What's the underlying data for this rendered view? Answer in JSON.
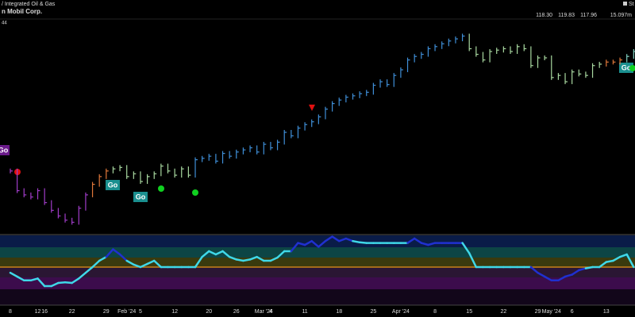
{
  "header": {
    "sector": "/ Integrated Oil & Gas",
    "name": "n Mobil Corp.",
    "corner": "44",
    "badge": "St",
    "quote": [
      "118.30",
      "119.83",
      "117.96",
      "15.097m"
    ]
  },
  "annotations": [
    "Go",
    "Go",
    "Go",
    "Go"
  ],
  "chart_data": [
    {
      "type": "ohlc",
      "categories": [
        "8",
        null,
        null,
        null,
        "12",
        "16",
        null,
        null,
        null,
        "22",
        null,
        null,
        null,
        null,
        "29",
        null,
        null,
        "Feb '24",
        null,
        "5",
        null,
        null,
        null,
        null,
        "12",
        null,
        null,
        null,
        null,
        "20",
        null,
        null,
        null,
        "26",
        null,
        null,
        null,
        "Mar '24",
        "4",
        null,
        null,
        null,
        null,
        "11",
        null,
        null,
        null,
        null,
        "18",
        null,
        null,
        null,
        null,
        "25",
        null,
        null,
        null,
        "Apr '24",
        null,
        null,
        null,
        null,
        "8",
        null,
        null,
        null,
        null,
        "15",
        null,
        null,
        null,
        null,
        "22",
        null,
        null,
        null,
        null,
        "29",
        null,
        "May '24",
        null,
        null,
        "6",
        null,
        null,
        null,
        null,
        "13",
        null,
        null,
        null,
        null
      ],
      "values": [
        103.6,
        100.8,
        100.2,
        99.9,
        100.8,
        99.1,
        98,
        97.2,
        96.6,
        96.3,
        98.3,
        100.2,
        101.7,
        102.8,
        103.6,
        103.9,
        104.1,
        102.8,
        103.2,
        102.1,
        102.8,
        103.2,
        104.3,
        103.6,
        103,
        103.9,
        103,
        105.2,
        105.4,
        105.7,
        105,
        106.1,
        105.7,
        106.3,
        106.6,
        106.9,
        106.3,
        107.4,
        106.9,
        107.7,
        109.1,
        108.6,
        109.7,
        110.2,
        110.6,
        111.3,
        112.4,
        113.2,
        113.7,
        114.1,
        114.3,
        114.6,
        114.8,
        115.8,
        116.3,
        115.9,
        117.2,
        118,
        119.4,
        119.9,
        120.2,
        121,
        121.3,
        121.7,
        122.1,
        122.4,
        122.8,
        121,
        120.2,
        119.4,
        120.6,
        120.8,
        121,
        120.6,
        121.3,
        121,
        118.6,
        119.7,
        119.7,
        116.9,
        117.2,
        116.3,
        117.7,
        117.4,
        117.2,
        118.6,
        118.8,
        119.1,
        119.1,
        119.4,
        119.9,
        120.6
      ],
      "colors": [
        "#a03cc8",
        "#a03cc8",
        "#a03cc8",
        "#a03cc8",
        "#a03cc8",
        "#a03cc8",
        "#a03cc8",
        "#a03cc8",
        "#a03cc8",
        "#a03cc8",
        "#a03cc8",
        "#a03cc8",
        "#e0783a",
        "#e0783a",
        "#e0783a",
        "#a8d8a0",
        "#a8d8a0",
        "#a8d8a0",
        "#a8d8a0",
        "#a8d8a0",
        "#a8d8a0",
        "#a8d8a0",
        "#a8d8a0",
        "#a8d8a0",
        "#a8d8a0",
        "#a8d8a0",
        "#a8d8a0",
        "#3f8fd8",
        "#3f8fd8",
        "#3f8fd8",
        "#3f8fd8",
        "#3f8fd8",
        "#3f8fd8",
        "#3f8fd8",
        "#3f8fd8",
        "#3f8fd8",
        "#3f8fd8",
        "#3f8fd8",
        "#3f8fd8",
        "#3f8fd8",
        "#3f8fd8",
        "#3f8fd8",
        "#3f8fd8",
        "#3f8fd8",
        "#3f8fd8",
        "#3f8fd8",
        "#3f8fd8",
        "#3f8fd8",
        "#3f8fd8",
        "#3f8fd8",
        "#3f8fd8",
        "#3f8fd8",
        "#3f8fd8",
        "#3f8fd8",
        "#3f8fd8",
        "#3f8fd8",
        "#3f8fd8",
        "#3f8fd8",
        "#3f8fd8",
        "#3f8fd8",
        "#3f8fd8",
        "#3f8fd8",
        "#3f8fd8",
        "#3f8fd8",
        "#3f8fd8",
        "#3f8fd8",
        "#3f8fd8",
        "#a8d8a0",
        "#a8d8a0",
        "#a8d8a0",
        "#a8d8a0",
        "#a8d8a0",
        "#a8d8a0",
        "#a8d8a0",
        "#a8d8a0",
        "#a8d8a0",
        "#a8d8a0",
        "#a8d8a0",
        "#a8d8a0",
        "#a8d8a0",
        "#a8d8a0",
        "#a8d8a0",
        "#a8d8a0",
        "#a8d8a0",
        "#a8d8a0",
        "#a8d8a0",
        "#a8d8a0",
        "#e0783a",
        "#e0783a",
        "#e0783a",
        "#7fd0c0",
        "#7fd0c0"
      ],
      "ylim": [
        95,
        125
      ]
    },
    {
      "type": "line",
      "values": [
        -0.9,
        -1.5,
        -2.1,
        -2.1,
        -1.8,
        -3,
        -3,
        -2.5,
        -2.4,
        -2.5,
        -1.8,
        -0.9,
        0,
        1,
        1.6,
        2.8,
        2,
        1,
        0.4,
        0,
        0.5,
        1,
        0,
        0,
        0,
        0,
        0,
        0,
        1.6,
        2.5,
        2,
        2.5,
        1.6,
        1.2,
        1,
        1.2,
        1.6,
        1,
        1,
        1.5,
        2.5,
        2.5,
        3.8,
        3.5,
        4.1,
        3.2,
        4.1,
        4.8,
        4.1,
        4.5,
        4.1,
        3.9,
        3.8,
        3.8,
        3.8,
        3.8,
        3.8,
        3.8,
        3.8,
        4.5,
        3.8,
        3.5,
        3.8,
        3.8,
        3.8,
        3.8,
        3.8,
        2.2,
        0,
        0,
        0,
        0,
        0,
        0,
        0,
        0,
        0,
        -0.9,
        -1.5,
        -2.1,
        -2.1,
        -1.5,
        -1.2,
        -0.5,
        -0.2,
        0,
        0,
        0.8,
        1,
        1.6,
        2,
        0
      ],
      "colors": [
        "#3fd8e8",
        "#3fd8e8",
        "#3fd8e8",
        "#3fd8e8",
        "#3fd8e8",
        "#3fd8e8",
        "#3fd8e8",
        "#3fd8e8",
        "#3fd8e8",
        "#3fd8e8",
        "#3fd8e8",
        "#3fd8e8",
        "#3fd8e8",
        "#3fd8e8",
        "#3fd8e8",
        "#2030d0",
        "#2030d0",
        "#2030d0",
        "#3fd8e8",
        "#3fd8e8",
        "#3fd8e8",
        "#3fd8e8",
        "#3fd8e8",
        "#3fd8e8",
        "#3fd8e8",
        "#3fd8e8",
        "#3fd8e8",
        "#3fd8e8",
        "#3fd8e8",
        "#3fd8e8",
        "#3fd8e8",
        "#3fd8e8",
        "#3fd8e8",
        "#3fd8e8",
        "#3fd8e8",
        "#3fd8e8",
        "#3fd8e8",
        "#3fd8e8",
        "#3fd8e8",
        "#3fd8e8",
        "#3fd8e8",
        "#3fd8e8",
        "#2030d0",
        "#2030d0",
        "#2030d0",
        "#2030d0",
        "#2030d0",
        "#2030d0",
        "#2030d0",
        "#2030d0",
        "#2030d0",
        "#3fd8e8",
        "#3fd8e8",
        "#3fd8e8",
        "#3fd8e8",
        "#3fd8e8",
        "#3fd8e8",
        "#3fd8e8",
        "#3fd8e8",
        "#2030d0",
        "#2030d0",
        "#2030d0",
        "#2030d0",
        "#2030d0",
        "#2030d0",
        "#2030d0",
        "#2030d0",
        "#3fd8e8",
        "#3fd8e8",
        "#3fd8e8",
        "#3fd8e8",
        "#3fd8e8",
        "#3fd8e8",
        "#3fd8e8",
        "#3fd8e8",
        "#3fd8e8",
        "#3fd8e8",
        "#2030d0",
        "#2030d0",
        "#2030d0",
        "#2030d0",
        "#2030d0",
        "#2030d0",
        "#2030d0",
        "#2030d0",
        "#3fd8e8",
        "#3fd8e8",
        "#3fd8e8",
        "#3fd8e8",
        "#3fd8e8",
        "#3fd8e8",
        "#3fd8e8"
      ],
      "ylim": [
        -6,
        5
      ]
    }
  ]
}
